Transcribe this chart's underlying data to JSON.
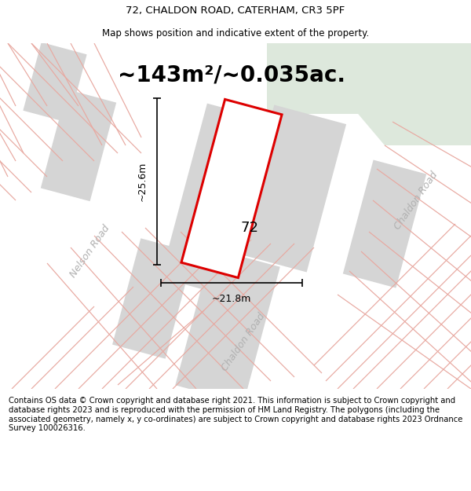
{
  "title_line1": "72, CHALDON ROAD, CATERHAM, CR3 5PF",
  "title_line2": "Map shows position and indicative extent of the property.",
  "area_text": "~143m²/~0.035ac.",
  "property_number": "72",
  "dim_width": "~21.8m",
  "dim_height": "~25.6m",
  "road_label_bottom": "Chaldon Road",
  "road_label_right": "Chaldon Road",
  "road_label_left": "Nelson Road",
  "footer_text": "Contains OS data © Crown copyright and database right 2021. This information is subject to Crown copyright and database rights 2023 and is reproduced with the permission of HM Land Registry. The polygons (including the associated geometry, namely x, y co-ordinates) are subject to Crown copyright and database rights 2023 Ordnance Survey 100026316.",
  "bg_color": "#eeeceb",
  "map_bg": "#eeeceb",
  "plot_outline_color": "#dd0000",
  "plot_fill_color": "#ffffff",
  "building_fill": "#d5d5d5",
  "road_line_color": "#e8a8a0",
  "green_area_color": "#dde8dc",
  "title_fontsize": 9.5,
  "area_fontsize": 20,
  "footer_fontsize": 7.2
}
